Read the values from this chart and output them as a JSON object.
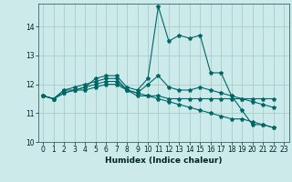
{
  "title": "",
  "xlabel": "Humidex (Indice chaleur)",
  "ylabel": "",
  "background_color": "#cceaea",
  "grid_color": "#aacccc",
  "line_color": "#006666",
  "xlim": [
    -0.5,
    23.5
  ],
  "ylim": [
    10.0,
    14.8
  ],
  "yticks": [
    10,
    11,
    12,
    13,
    14
  ],
  "xticks": [
    0,
    1,
    2,
    3,
    4,
    5,
    6,
    7,
    8,
    9,
    10,
    11,
    12,
    13,
    14,
    15,
    16,
    17,
    18,
    19,
    20,
    21,
    22,
    23
  ],
  "series": [
    [
      11.6,
      11.5,
      11.8,
      11.8,
      11.9,
      12.2,
      12.3,
      12.3,
      11.9,
      11.8,
      12.2,
      14.7,
      13.5,
      13.7,
      13.6,
      13.7,
      12.4,
      12.4,
      11.6,
      11.1,
      10.6,
      10.6,
      10.5
    ],
    [
      11.6,
      11.5,
      11.8,
      11.9,
      12.0,
      12.1,
      12.2,
      12.2,
      11.8,
      11.7,
      12.0,
      12.3,
      11.9,
      11.8,
      11.8,
      11.9,
      11.8,
      11.7,
      11.6,
      11.5,
      11.4,
      11.3,
      11.2
    ],
    [
      11.6,
      11.5,
      11.7,
      11.8,
      11.9,
      12.0,
      12.1,
      12.1,
      11.8,
      11.6,
      11.6,
      11.5,
      11.4,
      11.3,
      11.2,
      11.1,
      11.0,
      10.9,
      10.8,
      10.8,
      10.7,
      10.6,
      10.5
    ],
    [
      11.6,
      11.5,
      11.7,
      11.8,
      11.8,
      11.9,
      12.0,
      12.0,
      11.8,
      11.7,
      11.6,
      11.6,
      11.5,
      11.5,
      11.5,
      11.5,
      11.5,
      11.5,
      11.5,
      11.5,
      11.5,
      11.5,
      11.5
    ]
  ]
}
